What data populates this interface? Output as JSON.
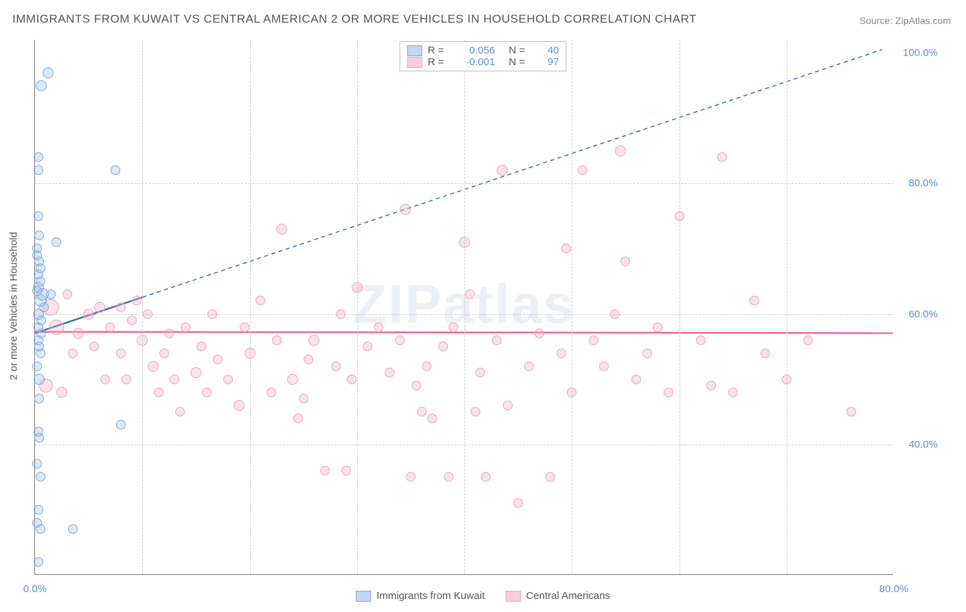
{
  "title": "IMMIGRANTS FROM KUWAIT VS CENTRAL AMERICAN 2 OR MORE VEHICLES IN HOUSEHOLD CORRELATION CHART",
  "source": "Source: ZipAtlas.com",
  "watermark": "ZIPatlas",
  "ylabel": "2 or more Vehicles in Household",
  "chart": {
    "type": "scatter",
    "x_range": [
      0,
      80
    ],
    "y_range": [
      20,
      102
    ],
    "x_ticks": [
      0,
      80
    ],
    "y_ticks": [
      40,
      60,
      80,
      100
    ],
    "x_tick_labels": [
      "0.0%",
      "80.0%"
    ],
    "y_tick_labels": [
      "40.0%",
      "60.0%",
      "80.0%",
      "100.0%"
    ],
    "grid_h": [
      40,
      60,
      80
    ],
    "grid_v": [
      10,
      20,
      30,
      40,
      50,
      60,
      70
    ],
    "grid_color": "#cccccc",
    "background_color": "#ffffff",
    "axis_color": "#777777",
    "tick_color": "#5b8fd6",
    "marker_size_small": 14,
    "marker_size_med": 18,
    "marker_size_large": 24,
    "colors": {
      "blue_fill": "rgba(150,190,235,0.35)",
      "blue_stroke": "#7fa8db",
      "pink_fill": "rgba(245,170,195,0.35)",
      "pink_stroke": "#eda4bc",
      "blue_line": "#3b6fb5",
      "pink_line": "#e56d94"
    }
  },
  "legend_top": {
    "rows": [
      {
        "swatch": "blue",
        "r": "0.056",
        "n": "40"
      },
      {
        "swatch": "pink",
        "r": "-0.001",
        "n": "97"
      }
    ],
    "r_label": "R =",
    "n_label": "N ="
  },
  "legend_bottom": [
    {
      "swatch": "blue",
      "label": "Immigrants from Kuwait"
    },
    {
      "swatch": "pink",
      "label": "Central Americans"
    }
  ],
  "trend_lines": {
    "blue_solid": {
      "x1": 0,
      "y1": 57,
      "x2": 10,
      "y2": 62.5,
      "width": 2.5
    },
    "blue_dashed": {
      "x1": 10,
      "y1": 62.5,
      "x2": 79,
      "y2": 100.5,
      "dash": "6,5",
      "width": 1.5
    },
    "pink_solid": {
      "x1": 0,
      "y1": 57.2,
      "x2": 80,
      "y2": 57.0,
      "width": 2.5
    }
  },
  "series": {
    "blue": [
      {
        "x": 0.3,
        "y": 22,
        "s": 14
      },
      {
        "x": 0.5,
        "y": 27,
        "s": 14
      },
      {
        "x": 0.2,
        "y": 28,
        "s": 14
      },
      {
        "x": 3.5,
        "y": 27,
        "s": 14
      },
      {
        "x": 0.3,
        "y": 30,
        "s": 14
      },
      {
        "x": 0.5,
        "y": 35,
        "s": 14
      },
      {
        "x": 0.2,
        "y": 37,
        "s": 14
      },
      {
        "x": 0.4,
        "y": 41,
        "s": 14
      },
      {
        "x": 0.3,
        "y": 42,
        "s": 14
      },
      {
        "x": 8.0,
        "y": 43,
        "s": 14
      },
      {
        "x": 0.4,
        "y": 47,
        "s": 14
      },
      {
        "x": 0.4,
        "y": 50,
        "s": 16
      },
      {
        "x": 0.2,
        "y": 52,
        "s": 14
      },
      {
        "x": 0.5,
        "y": 54,
        "s": 14
      },
      {
        "x": 0.6,
        "y": 57,
        "s": 14
      },
      {
        "x": 0.3,
        "y": 60,
        "s": 16
      },
      {
        "x": 0.5,
        "y": 62,
        "s": 18
      },
      {
        "x": 0.7,
        "y": 63,
        "s": 18
      },
      {
        "x": 0.3,
        "y": 64,
        "s": 16
      },
      {
        "x": 0.5,
        "y": 65,
        "s": 14
      },
      {
        "x": 0.3,
        "y": 66,
        "s": 14
      },
      {
        "x": 0.4,
        "y": 68,
        "s": 14
      },
      {
        "x": 0.2,
        "y": 70,
        "s": 14
      },
      {
        "x": 2.0,
        "y": 71,
        "s": 14
      },
      {
        "x": 0.3,
        "y": 75,
        "s": 14
      },
      {
        "x": 0.3,
        "y": 82,
        "s": 14
      },
      {
        "x": 0.3,
        "y": 84,
        "s": 14
      },
      {
        "x": 7.5,
        "y": 82,
        "s": 14
      },
      {
        "x": 0.6,
        "y": 95,
        "s": 16
      },
      {
        "x": 1.2,
        "y": 97,
        "s": 16
      },
      {
        "x": 0.3,
        "y": 58,
        "s": 14
      },
      {
        "x": 0.6,
        "y": 59,
        "s": 14
      },
      {
        "x": 0.8,
        "y": 61,
        "s": 14
      },
      {
        "x": 1.5,
        "y": 63,
        "s": 14
      },
      {
        "x": 0.2,
        "y": 63.5,
        "s": 14
      },
      {
        "x": 0.4,
        "y": 55,
        "s": 14
      },
      {
        "x": 0.3,
        "y": 56,
        "s": 14
      },
      {
        "x": 0.5,
        "y": 67,
        "s": 14
      },
      {
        "x": 0.2,
        "y": 69,
        "s": 14
      },
      {
        "x": 0.4,
        "y": 72,
        "s": 14
      }
    ],
    "pink": [
      {
        "x": 1.5,
        "y": 61,
        "s": 24
      },
      {
        "x": 2,
        "y": 58,
        "s": 22
      },
      {
        "x": 1,
        "y": 49,
        "s": 20
      },
      {
        "x": 2.5,
        "y": 48,
        "s": 16
      },
      {
        "x": 3,
        "y": 63,
        "s": 14
      },
      {
        "x": 4,
        "y": 57,
        "s": 16
      },
      {
        "x": 5,
        "y": 60,
        "s": 16
      },
      {
        "x": 5.5,
        "y": 55,
        "s": 14
      },
      {
        "x": 6,
        "y": 61,
        "s": 16
      },
      {
        "x": 7,
        "y": 58,
        "s": 14
      },
      {
        "x": 8,
        "y": 61,
        "s": 14
      },
      {
        "x": 8.5,
        "y": 50,
        "s": 14
      },
      {
        "x": 9,
        "y": 59,
        "s": 14
      },
      {
        "x": 9.5,
        "y": 62,
        "s": 14
      },
      {
        "x": 10,
        "y": 56,
        "s": 16
      },
      {
        "x": 10.5,
        "y": 60,
        "s": 14
      },
      {
        "x": 11,
        "y": 52,
        "s": 16
      },
      {
        "x": 11.5,
        "y": 48,
        "s": 14
      },
      {
        "x": 12,
        "y": 54,
        "s": 14
      },
      {
        "x": 12.5,
        "y": 57,
        "s": 14
      },
      {
        "x": 13,
        "y": 50,
        "s": 14
      },
      {
        "x": 13.5,
        "y": 45,
        "s": 14
      },
      {
        "x": 14,
        "y": 58,
        "s": 14
      },
      {
        "x": 15,
        "y": 51,
        "s": 16
      },
      {
        "x": 15.5,
        "y": 55,
        "s": 14
      },
      {
        "x": 16,
        "y": 48,
        "s": 14
      },
      {
        "x": 16.5,
        "y": 60,
        "s": 14
      },
      {
        "x": 17,
        "y": 53,
        "s": 14
      },
      {
        "x": 18,
        "y": 50,
        "s": 14
      },
      {
        "x": 19,
        "y": 46,
        "s": 16
      },
      {
        "x": 19.5,
        "y": 58,
        "s": 14
      },
      {
        "x": 20,
        "y": 54,
        "s": 16
      },
      {
        "x": 21,
        "y": 62,
        "s": 14
      },
      {
        "x": 22,
        "y": 48,
        "s": 14
      },
      {
        "x": 22.5,
        "y": 56,
        "s": 14
      },
      {
        "x": 23,
        "y": 73,
        "s": 16
      },
      {
        "x": 24,
        "y": 50,
        "s": 16
      },
      {
        "x": 24.5,
        "y": 44,
        "s": 14
      },
      {
        "x": 25,
        "y": 47,
        "s": 14
      },
      {
        "x": 25.5,
        "y": 53,
        "s": 14
      },
      {
        "x": 26,
        "y": 56,
        "s": 16
      },
      {
        "x": 27,
        "y": 36,
        "s": 14
      },
      {
        "x": 28,
        "y": 52,
        "s": 14
      },
      {
        "x": 28.5,
        "y": 60,
        "s": 14
      },
      {
        "x": 29,
        "y": 36,
        "s": 14
      },
      {
        "x": 29.5,
        "y": 50,
        "s": 14
      },
      {
        "x": 30,
        "y": 64,
        "s": 16
      },
      {
        "x": 31,
        "y": 55,
        "s": 14
      },
      {
        "x": 32,
        "y": 58,
        "s": 14
      },
      {
        "x": 33,
        "y": 51,
        "s": 14
      },
      {
        "x": 34,
        "y": 56,
        "s": 14
      },
      {
        "x": 34.5,
        "y": 76,
        "s": 16
      },
      {
        "x": 35,
        "y": 35,
        "s": 14
      },
      {
        "x": 35.5,
        "y": 49,
        "s": 14
      },
      {
        "x": 36,
        "y": 45,
        "s": 14
      },
      {
        "x": 36.5,
        "y": 52,
        "s": 14
      },
      {
        "x": 37,
        "y": 44,
        "s": 14
      },
      {
        "x": 38,
        "y": 55,
        "s": 14
      },
      {
        "x": 38.5,
        "y": 35,
        "s": 14
      },
      {
        "x": 39,
        "y": 58,
        "s": 14
      },
      {
        "x": 40,
        "y": 71,
        "s": 16
      },
      {
        "x": 40.5,
        "y": 63,
        "s": 14
      },
      {
        "x": 41,
        "y": 45,
        "s": 14
      },
      {
        "x": 41.5,
        "y": 51,
        "s": 14
      },
      {
        "x": 42,
        "y": 35,
        "s": 14
      },
      {
        "x": 43,
        "y": 56,
        "s": 14
      },
      {
        "x": 43.5,
        "y": 82,
        "s": 16
      },
      {
        "x": 44,
        "y": 46,
        "s": 14
      },
      {
        "x": 45,
        "y": 31,
        "s": 14
      },
      {
        "x": 46,
        "y": 52,
        "s": 14
      },
      {
        "x": 47,
        "y": 57,
        "s": 14
      },
      {
        "x": 48,
        "y": 35,
        "s": 14
      },
      {
        "x": 49,
        "y": 54,
        "s": 14
      },
      {
        "x": 49.5,
        "y": 70,
        "s": 14
      },
      {
        "x": 50,
        "y": 48,
        "s": 14
      },
      {
        "x": 51,
        "y": 82,
        "s": 14
      },
      {
        "x": 52,
        "y": 56,
        "s": 14
      },
      {
        "x": 53,
        "y": 52,
        "s": 14
      },
      {
        "x": 54,
        "y": 60,
        "s": 14
      },
      {
        "x": 54.5,
        "y": 85,
        "s": 16
      },
      {
        "x": 55,
        "y": 68,
        "s": 14
      },
      {
        "x": 56,
        "y": 50,
        "s": 14
      },
      {
        "x": 57,
        "y": 54,
        "s": 14
      },
      {
        "x": 58,
        "y": 58,
        "s": 14
      },
      {
        "x": 59,
        "y": 48,
        "s": 14
      },
      {
        "x": 60,
        "y": 75,
        "s": 14
      },
      {
        "x": 62,
        "y": 56,
        "s": 14
      },
      {
        "x": 63,
        "y": 49,
        "s": 14
      },
      {
        "x": 64,
        "y": 84,
        "s": 14
      },
      {
        "x": 65,
        "y": 48,
        "s": 14
      },
      {
        "x": 67,
        "y": 62,
        "s": 14
      },
      {
        "x": 68,
        "y": 54,
        "s": 14
      },
      {
        "x": 70,
        "y": 50,
        "s": 14
      },
      {
        "x": 72,
        "y": 56,
        "s": 14
      },
      {
        "x": 76,
        "y": 45,
        "s": 14
      },
      {
        "x": 8,
        "y": 54,
        "s": 14
      },
      {
        "x": 6.5,
        "y": 50,
        "s": 14
      },
      {
        "x": 3.5,
        "y": 54,
        "s": 14
      }
    ]
  }
}
